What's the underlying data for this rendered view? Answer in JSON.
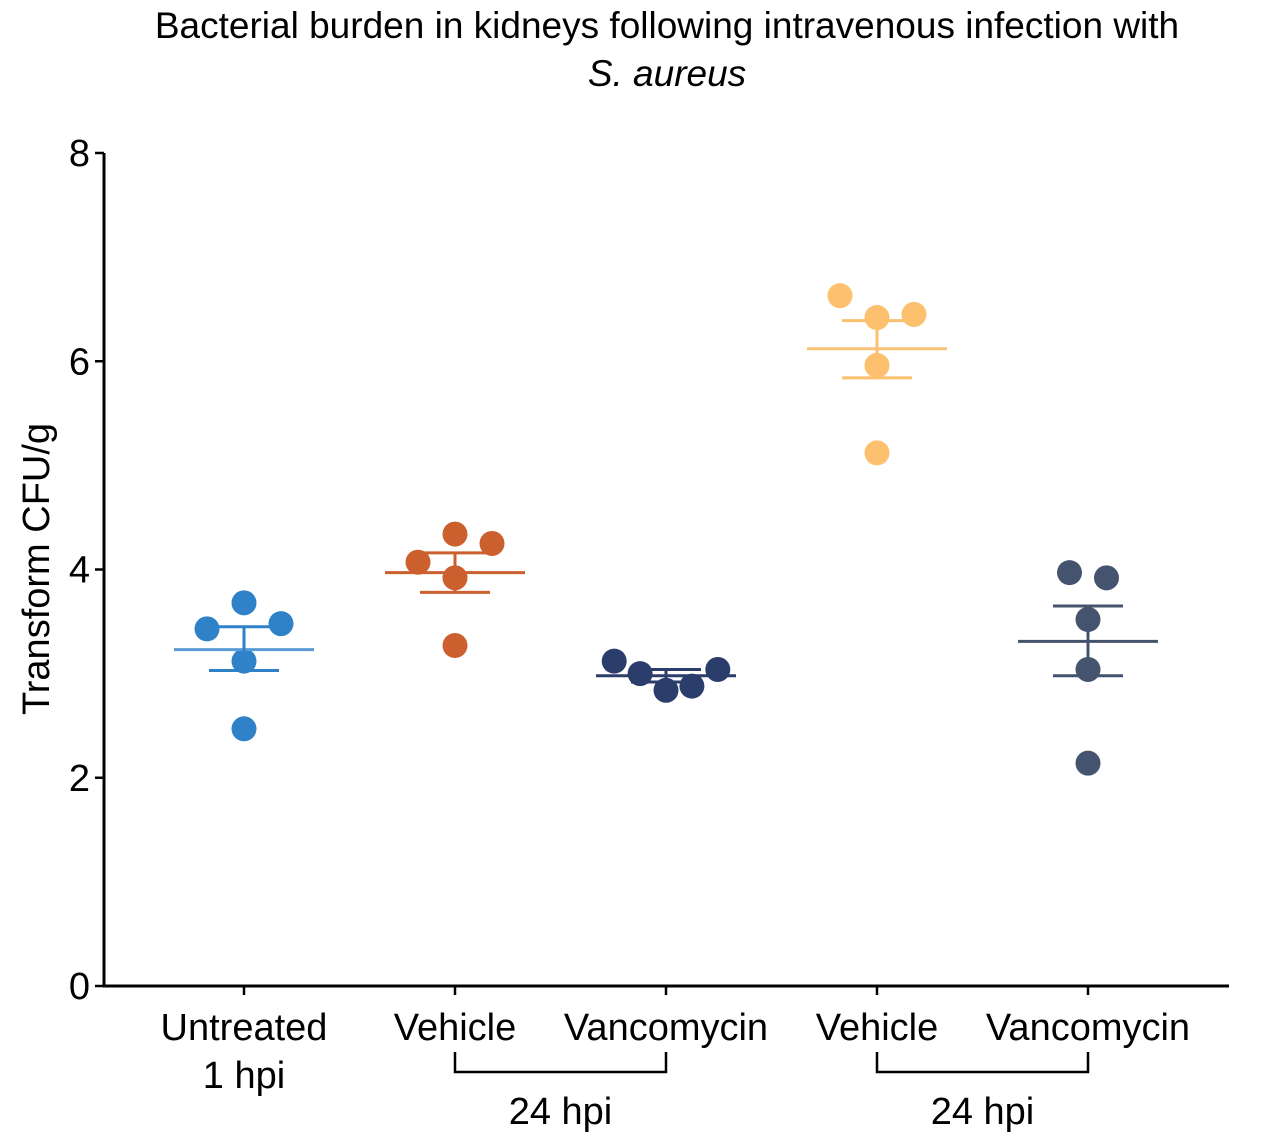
{
  "chart_data": {
    "type": "scatter",
    "subtype": "dot-plot-mean-sem",
    "title": "Bacterial burden in kidneys following intravenous infection with",
    "subtitle": "S. aureus",
    "xlabel": "",
    "ylabel": "Transform CFU/g",
    "ylim": [
      0,
      8
    ],
    "yticks": [
      0,
      2,
      4,
      6,
      8
    ],
    "grid": false,
    "legend": "none",
    "categories": [
      "Untreated",
      "Vehicle",
      "Vancomycin",
      "Vehicle",
      "Vancomycin"
    ],
    "category_sublabels": [
      "1 hpi",
      "",
      "",
      "",
      ""
    ],
    "brackets": [
      {
        "from": 1,
        "to": 2,
        "label": "24 hpi"
      },
      {
        "from": 3,
        "to": 4,
        "label": "24 hpi"
      }
    ],
    "series": [
      {
        "name": "Untreated 1 hpi",
        "color": "#2f82c8",
        "mean_color": "#5b9bd5",
        "values": [
          3.43,
          3.68,
          3.48,
          3.12,
          2.47
        ],
        "offsets": [
          -1,
          0,
          1,
          0,
          0
        ],
        "mean": 3.23,
        "sem_upper": 3.45,
        "sem_lower": 3.03
      },
      {
        "name": "Vehicle 24 hpi",
        "color": "#cc5f2e",
        "mean_color": "#cc5f2e",
        "values": [
          4.07,
          4.34,
          4.25,
          3.92,
          3.27
        ],
        "offsets": [
          -1,
          0,
          1,
          0,
          0
        ],
        "mean": 3.97,
        "sem_upper": 4.16,
        "sem_lower": 3.78
      },
      {
        "name": "Vancomycin 24 hpi",
        "color": "#2b3d6b",
        "mean_color": "#2b3d6b",
        "values": [
          3.12,
          3.0,
          2.84,
          2.88,
          3.04
        ],
        "offsets": [
          -2,
          -1,
          0,
          1,
          2
        ],
        "mean": 2.98,
        "sem_upper": 3.04,
        "sem_lower": 2.92
      },
      {
        "name": "Vehicle 24 hpi (2)",
        "color": "#fcc06e",
        "mean_color": "#f8c47a",
        "values": [
          6.63,
          6.42,
          6.45,
          5.96,
          5.12
        ],
        "offsets": [
          -1,
          0,
          1,
          0,
          0
        ],
        "mean": 6.12,
        "sem_upper": 6.39,
        "sem_lower": 5.84
      },
      {
        "name": "Vancomycin 24 hpi (2)",
        "color": "#44546e",
        "mean_color": "#44546e",
        "values": [
          3.97,
          3.92,
          3.52,
          3.04,
          2.14
        ],
        "offsets": [
          -0.5,
          0.5,
          0,
          0,
          0
        ],
        "mean": 3.31,
        "sem_upper": 3.65,
        "sem_lower": 2.98
      }
    ]
  }
}
